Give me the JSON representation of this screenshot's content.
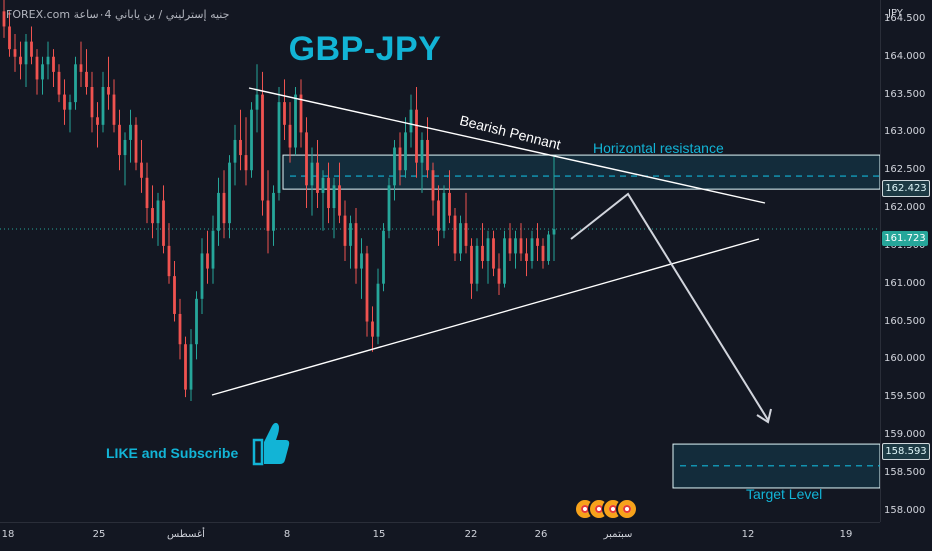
{
  "header": {
    "source": "FOREX.com",
    "symbol_desc": "جنيه إسترليني / ين ياباني ٠4ساعة"
  },
  "colors": {
    "background": "#131722",
    "bull": "#26a69a",
    "bear": "#ef5350",
    "accent": "#12b4d6",
    "grid": "#1e222d"
  },
  "annotations": {
    "title": "GBP-JPY",
    "pennant": "Bearish Pennant",
    "resistance": "Horizontal resistance",
    "like": "LIKE and Subscribe",
    "target": "Target Level"
  },
  "icons": {
    "thumb": "thumbs-up-icon",
    "events": "economic-event-icon"
  },
  "chart_data": {
    "type": "candlestick",
    "title": "GBP-JPY",
    "ylabel": "JPY",
    "ylim": [
      157.85,
      164.75
    ],
    "y_ticks": [
      "164.500",
      "164.000",
      "163.500",
      "163.000",
      "162.500",
      "162.000",
      "161.500",
      "161.000",
      "160.500",
      "160.000",
      "159.500",
      "159.000",
      "158.500",
      "158.000"
    ],
    "x_ticks": [
      "18",
      "25",
      "أغسطس",
      "8",
      "15",
      "22",
      "26",
      "سبتمبر",
      "12",
      "19"
    ],
    "series": [
      {
        "name": "",
        "values": [
          [
            164.6,
            164.85,
            164.25,
            164.4
          ],
          [
            164.4,
            164.6,
            164.0,
            164.1
          ],
          [
            164.1,
            164.3,
            163.8,
            164.0
          ],
          [
            164.0,
            164.2,
            163.7,
            163.9
          ],
          [
            163.9,
            164.3,
            163.6,
            164.2
          ],
          [
            164.2,
            164.4,
            163.9,
            164.0
          ],
          [
            164.0,
            164.1,
            163.5,
            163.7
          ],
          [
            163.7,
            164.0,
            163.5,
            163.9
          ],
          [
            163.9,
            164.2,
            163.7,
            164.0
          ],
          [
            164.0,
            164.1,
            163.6,
            163.8
          ],
          [
            163.8,
            163.9,
            163.4,
            163.5
          ],
          [
            163.5,
            163.7,
            163.1,
            163.3
          ],
          [
            163.3,
            163.5,
            163.0,
            163.4
          ],
          [
            163.4,
            164.0,
            163.3,
            163.9
          ],
          [
            163.9,
            164.2,
            163.6,
            163.8
          ],
          [
            163.8,
            164.1,
            163.5,
            163.6
          ],
          [
            163.6,
            163.8,
            163.0,
            163.2
          ],
          [
            163.2,
            163.4,
            162.8,
            163.1
          ],
          [
            163.1,
            163.8,
            163.0,
            163.6
          ],
          [
            163.6,
            164.0,
            163.3,
            163.5
          ],
          [
            163.5,
            163.7,
            163.0,
            163.1
          ],
          [
            163.1,
            163.3,
            162.5,
            162.7
          ],
          [
            162.7,
            163.0,
            162.3,
            162.9
          ],
          [
            162.9,
            163.3,
            162.6,
            163.1
          ],
          [
            163.1,
            163.2,
            162.5,
            162.6
          ],
          [
            162.6,
            162.9,
            162.2,
            162.4
          ],
          [
            162.4,
            162.6,
            161.8,
            162.0
          ],
          [
            162.0,
            162.3,
            161.6,
            161.8
          ],
          [
            161.8,
            162.2,
            161.5,
            162.1
          ],
          [
            162.1,
            162.3,
            161.4,
            161.5
          ],
          [
            161.5,
            161.8,
            161.0,
            161.1
          ],
          [
            161.1,
            161.3,
            160.5,
            160.6
          ],
          [
            160.6,
            160.8,
            160.0,
            160.2
          ],
          [
            160.2,
            160.3,
            159.5,
            159.6
          ],
          [
            159.6,
            160.4,
            159.45,
            160.2
          ],
          [
            160.2,
            160.9,
            160.0,
            160.8
          ],
          [
            160.8,
            161.6,
            160.6,
            161.4
          ],
          [
            161.4,
            161.7,
            161.0,
            161.2
          ],
          [
            161.2,
            161.9,
            161.0,
            161.7
          ],
          [
            161.7,
            162.4,
            161.5,
            162.2
          ],
          [
            162.2,
            162.5,
            161.6,
            161.8
          ],
          [
            161.8,
            162.7,
            161.6,
            162.6
          ],
          [
            162.6,
            163.1,
            162.3,
            162.9
          ],
          [
            162.9,
            163.3,
            162.5,
            162.7
          ],
          [
            162.7,
            163.2,
            162.3,
            162.5
          ],
          [
            162.5,
            163.4,
            162.4,
            163.3
          ],
          [
            163.3,
            163.9,
            163.0,
            163.5
          ],
          [
            163.5,
            163.8,
            161.9,
            162.1
          ],
          [
            162.1,
            162.5,
            161.4,
            161.7
          ],
          [
            161.7,
            162.3,
            161.5,
            162.2
          ],
          [
            162.2,
            163.6,
            162.1,
            163.4
          ],
          [
            163.4,
            163.7,
            162.9,
            163.1
          ],
          [
            163.1,
            163.4,
            162.6,
            162.8
          ],
          [
            162.8,
            163.6,
            162.7,
            163.5
          ],
          [
            163.5,
            163.7,
            162.8,
            163.0
          ],
          [
            163.0,
            163.2,
            162.0,
            162.3
          ],
          [
            162.3,
            162.8,
            161.9,
            162.6
          ],
          [
            162.6,
            162.9,
            162.0,
            162.2
          ],
          [
            162.2,
            162.5,
            161.7,
            162.4
          ],
          [
            162.4,
            162.6,
            161.8,
            162.0
          ],
          [
            162.0,
            162.4,
            161.6,
            162.3
          ],
          [
            162.3,
            162.6,
            161.8,
            161.9
          ],
          [
            161.9,
            162.1,
            161.3,
            161.5
          ],
          [
            161.5,
            161.9,
            161.2,
            161.8
          ],
          [
            161.8,
            162.0,
            161.0,
            161.2
          ],
          [
            161.2,
            161.6,
            160.8,
            161.4
          ],
          [
            161.4,
            161.5,
            160.3,
            160.5
          ],
          [
            160.5,
            160.7,
            160.1,
            160.3
          ],
          [
            160.3,
            161.2,
            160.2,
            161.0
          ],
          [
            161.0,
            161.8,
            160.9,
            161.7
          ],
          [
            161.7,
            162.4,
            161.6,
            162.3
          ],
          [
            162.3,
            162.9,
            162.1,
            162.8
          ],
          [
            162.8,
            163.0,
            162.3,
            162.5
          ],
          [
            162.5,
            163.2,
            162.4,
            163.0
          ],
          [
            163.0,
            163.5,
            162.8,
            163.3
          ],
          [
            163.3,
            163.6,
            162.4,
            162.6
          ],
          [
            162.6,
            163.0,
            162.2,
            162.9
          ],
          [
            162.9,
            163.2,
            162.4,
            162.5
          ],
          [
            162.5,
            162.6,
            161.9,
            162.1
          ],
          [
            162.1,
            162.3,
            161.5,
            161.7
          ],
          [
            161.7,
            162.3,
            161.6,
            162.2
          ],
          [
            162.2,
            162.5,
            161.8,
            161.9
          ],
          [
            161.9,
            162.0,
            161.3,
            161.4
          ],
          [
            161.4,
            161.9,
            161.3,
            161.8
          ],
          [
            161.8,
            162.2,
            161.4,
            161.5
          ],
          [
            161.5,
            161.6,
            160.8,
            161.0
          ],
          [
            161.0,
            161.6,
            160.9,
            161.5
          ],
          [
            161.5,
            161.8,
            161.2,
            161.3
          ],
          [
            161.3,
            161.7,
            161.0,
            161.6
          ],
          [
            161.6,
            161.7,
            161.1,
            161.2
          ],
          [
            161.2,
            161.4,
            160.85,
            161.0
          ],
          [
            161.0,
            161.7,
            160.95,
            161.6
          ],
          [
            161.6,
            161.8,
            161.3,
            161.4
          ],
          [
            161.4,
            161.7,
            161.2,
            161.6
          ],
          [
            161.6,
            161.8,
            161.3,
            161.4
          ],
          [
            161.4,
            161.6,
            161.1,
            161.3
          ],
          [
            161.3,
            161.7,
            161.2,
            161.6
          ],
          [
            161.6,
            161.8,
            161.3,
            161.5
          ],
          [
            161.5,
            161.6,
            161.2,
            161.3
          ],
          [
            161.3,
            161.7,
            161.25,
            161.65
          ],
          [
            161.65,
            162.7,
            161.3,
            161.72
          ]
        ]
      }
    ],
    "levels": {
      "resistance_zone": [
        162.25,
        162.7
      ],
      "resistance_mid": 162.423,
      "last_price": 161.723,
      "target_zone": [
        158.3,
        158.88
      ],
      "target_mid": 158.593
    },
    "price_labels": [
      "162.423",
      "161.723",
      "158.593"
    ],
    "grid": false,
    "legend": "none"
  }
}
